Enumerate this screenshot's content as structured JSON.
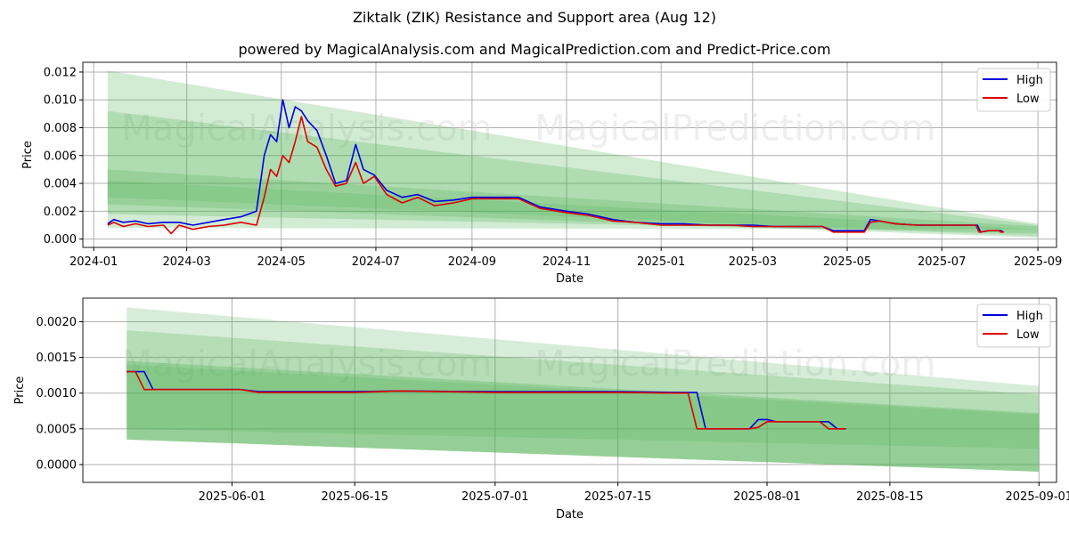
{
  "title": "Ziktalk (ZIK) Resistance and Support area (Aug 12)",
  "subtitle": "powered by MagicalAnalysis.com and MagicalPrediction.com and Predict-Price.com",
  "watermarks": [
    "MagicalAnalysis.com",
    "MagicalPrediction.com"
  ],
  "colors": {
    "high": "#0000dd",
    "low": "#dd0000",
    "band": "#4caf50",
    "grid": "#b0b0b0"
  },
  "chart_data": [
    {
      "type": "line",
      "xlabel": "Date",
      "ylabel": "Price",
      "xlim": [
        "2023-12-25",
        "2025-09-13"
      ],
      "ylim": [
        -0.0006,
        0.0127
      ],
      "x_ticks": [
        "2024-01",
        "2024-03",
        "2024-05",
        "2024-07",
        "2024-09",
        "2024-11",
        "2025-01",
        "2025-03",
        "2025-05",
        "2025-07",
        "2025-09"
      ],
      "y_ticks": [
        "0.000",
        "0.002",
        "0.004",
        "0.006",
        "0.008",
        "0.010",
        "0.012"
      ],
      "legend": {
        "position": "top-right",
        "entries": [
          "High",
          "Low"
        ]
      },
      "grid": true,
      "bands_date_range": [
        "2024-01-10",
        "2025-09-01"
      ],
      "bands": [
        {
          "upper": [
            0.0121,
            0.0011
          ],
          "lower": [
            0.0008,
            0.0007
          ],
          "opacity": 0.25
        },
        {
          "upper": [
            0.0092,
            0.001
          ],
          "lower": [
            0.0018,
            0.0004
          ],
          "opacity": 0.25
        },
        {
          "upper": [
            0.005,
            0.0009
          ],
          "lower": [
            0.0025,
            0.0001
          ],
          "opacity": 0.25
        },
        {
          "upper": [
            0.0042,
            0.0007
          ],
          "lower": [
            0.003,
            0.0002
          ],
          "opacity": 0.2
        }
      ],
      "series": [
        {
          "name": "High",
          "points": [
            [
              "2024-01-10",
              0.0011
            ],
            [
              "2024-01-14",
              0.0014
            ],
            [
              "2024-01-20",
              0.0012
            ],
            [
              "2024-01-28",
              0.0013
            ],
            [
              "2024-02-05",
              0.0011
            ],
            [
              "2024-02-15",
              0.0012
            ],
            [
              "2024-02-25",
              0.0012
            ],
            [
              "2024-03-05",
              0.001
            ],
            [
              "2024-03-15",
              0.0012
            ],
            [
              "2024-03-25",
              0.0014
            ],
            [
              "2024-04-05",
              0.0016
            ],
            [
              "2024-04-15",
              0.002
            ],
            [
              "2024-04-20",
              0.006
            ],
            [
              "2024-04-24",
              0.0075
            ],
            [
              "2024-04-28",
              0.007
            ],
            [
              "2024-05-02",
              0.01
            ],
            [
              "2024-05-06",
              0.008
            ],
            [
              "2024-05-10",
              0.0095
            ],
            [
              "2024-05-14",
              0.0092
            ],
            [
              "2024-05-18",
              0.0085
            ],
            [
              "2024-05-24",
              0.0078
            ],
            [
              "2024-05-30",
              0.006
            ],
            [
              "2024-06-05",
              0.004
            ],
            [
              "2024-06-12",
              0.0042
            ],
            [
              "2024-06-18",
              0.0068
            ],
            [
              "2024-06-23",
              0.005
            ],
            [
              "2024-06-30",
              0.0046
            ],
            [
              "2024-07-08",
              0.0035
            ],
            [
              "2024-07-18",
              0.003
            ],
            [
              "2024-07-28",
              0.0032
            ],
            [
              "2024-08-08",
              0.0027
            ],
            [
              "2024-08-20",
              0.0028
            ],
            [
              "2024-09-01",
              0.003
            ],
            [
              "2024-09-15",
              0.003
            ],
            [
              "2024-10-01",
              0.003
            ],
            [
              "2024-10-15",
              0.0023
            ],
            [
              "2024-11-01",
              0.002
            ],
            [
              "2024-11-15",
              0.0018
            ],
            [
              "2024-12-01",
              0.0014
            ],
            [
              "2024-12-15",
              0.0012
            ],
            [
              "2025-01-01",
              0.0011
            ],
            [
              "2025-01-15",
              0.0011
            ],
            [
              "2025-02-01",
              0.001
            ],
            [
              "2025-02-15",
              0.001
            ],
            [
              "2025-03-01",
              0.001
            ],
            [
              "2025-03-15",
              0.0009
            ],
            [
              "2025-04-01",
              0.0009
            ],
            [
              "2025-04-15",
              0.0009
            ],
            [
              "2025-04-22",
              0.0006
            ],
            [
              "2025-05-01",
              0.0006
            ],
            [
              "2025-05-12",
              0.0006
            ],
            [
              "2025-05-16",
              0.0014
            ],
            [
              "2025-05-22",
              0.0013
            ],
            [
              "2025-06-01",
              0.0011
            ],
            [
              "2025-06-15",
              0.001
            ],
            [
              "2025-07-01",
              0.001
            ],
            [
              "2025-07-15",
              0.001
            ],
            [
              "2025-07-24",
              0.001
            ],
            [
              "2025-07-26",
              0.0005
            ],
            [
              "2025-07-31",
              0.0006
            ],
            [
              "2025-08-08",
              0.0006
            ],
            [
              "2025-08-10",
              0.0005
            ]
          ]
        },
        {
          "name": "Low",
          "points": [
            [
              "2024-01-10",
              0.001
            ],
            [
              "2024-01-14",
              0.0012
            ],
            [
              "2024-01-20",
              0.0009
            ],
            [
              "2024-01-28",
              0.0011
            ],
            [
              "2024-02-05",
              0.0009
            ],
            [
              "2024-02-15",
              0.001
            ],
            [
              "2024-02-20",
              0.0004
            ],
            [
              "2024-02-25",
              0.001
            ],
            [
              "2024-03-05",
              0.0007
            ],
            [
              "2024-03-15",
              0.0009
            ],
            [
              "2024-03-25",
              0.001
            ],
            [
              "2024-04-05",
              0.0012
            ],
            [
              "2024-04-15",
              0.001
            ],
            [
              "2024-04-20",
              0.003
            ],
            [
              "2024-04-24",
              0.005
            ],
            [
              "2024-04-28",
              0.0045
            ],
            [
              "2024-05-02",
              0.006
            ],
            [
              "2024-05-06",
              0.0055
            ],
            [
              "2024-05-10",
              0.007
            ],
            [
              "2024-05-14",
              0.0088
            ],
            [
              "2024-05-18",
              0.007
            ],
            [
              "2024-05-24",
              0.0066
            ],
            [
              "2024-05-30",
              0.005
            ],
            [
              "2024-06-05",
              0.0038
            ],
            [
              "2024-06-12",
              0.004
            ],
            [
              "2024-06-18",
              0.0055
            ],
            [
              "2024-06-23",
              0.004
            ],
            [
              "2024-06-30",
              0.0045
            ],
            [
              "2024-07-08",
              0.0032
            ],
            [
              "2024-07-18",
              0.0026
            ],
            [
              "2024-07-28",
              0.003
            ],
            [
              "2024-08-08",
              0.0024
            ],
            [
              "2024-08-20",
              0.0026
            ],
            [
              "2024-09-01",
              0.0029
            ],
            [
              "2024-09-15",
              0.0029
            ],
            [
              "2024-10-01",
              0.0029
            ],
            [
              "2024-10-15",
              0.0022
            ],
            [
              "2024-11-01",
              0.0019
            ],
            [
              "2024-11-15",
              0.0017
            ],
            [
              "2024-12-01",
              0.0013
            ],
            [
              "2024-12-15",
              0.0012
            ],
            [
              "2025-01-01",
              0.001
            ],
            [
              "2025-01-15",
              0.001
            ],
            [
              "2025-02-01",
              0.001
            ],
            [
              "2025-02-15",
              0.001
            ],
            [
              "2025-03-01",
              0.0009
            ],
            [
              "2025-03-15",
              0.0009
            ],
            [
              "2025-04-01",
              0.0009
            ],
            [
              "2025-04-15",
              0.0009
            ],
            [
              "2025-04-22",
              0.0005
            ],
            [
              "2025-05-01",
              0.0005
            ],
            [
              "2025-05-12",
              0.0005
            ],
            [
              "2025-05-16",
              0.0012
            ],
            [
              "2025-05-22",
              0.0013
            ],
            [
              "2025-06-01",
              0.0011
            ],
            [
              "2025-06-15",
              0.001
            ],
            [
              "2025-07-01",
              0.001
            ],
            [
              "2025-07-15",
              0.001
            ],
            [
              "2025-07-23",
              0.001
            ],
            [
              "2025-07-25",
              0.0005
            ],
            [
              "2025-07-31",
              0.0006
            ],
            [
              "2025-08-07",
              0.0006
            ],
            [
              "2025-08-08",
              0.0005
            ],
            [
              "2025-08-10",
              0.0005
            ]
          ]
        }
      ]
    },
    {
      "type": "line",
      "xlabel": "Date",
      "ylabel": "Price",
      "xlim": [
        "2025-05-15",
        "2025-09-03"
      ],
      "ylim": [
        -0.00025,
        0.00233
      ],
      "x_ticks": [
        "2025-06-01",
        "2025-06-15",
        "2025-07-01",
        "2025-07-15",
        "2025-08-01",
        "2025-08-15",
        "2025-09-01"
      ],
      "y_ticks": [
        "0.0000",
        "0.0005",
        "0.0010",
        "0.0015",
        "0.0020"
      ],
      "legend": {
        "position": "top-right",
        "entries": [
          "High",
          "Low"
        ]
      },
      "grid": true,
      "bands_date_range": [
        "2025-05-20",
        "2025-09-01"
      ],
      "bands": [
        {
          "upper": [
            0.0022,
            0.0011
          ],
          "lower": [
            0.00035,
            -0.0001
          ],
          "opacity": 0.22
        },
        {
          "upper": [
            0.00188,
            0.00098
          ],
          "lower": [
            0.00035,
            -0.0001
          ],
          "opacity": 0.25
        },
        {
          "upper": [
            0.00145,
            0.00072
          ],
          "lower": [
            0.00035,
            -0.0001
          ],
          "opacity": 0.3
        },
        {
          "upper": [
            0.0014,
            0.0007
          ],
          "lower": [
            0.0005,
            0.00022
          ],
          "opacity": 0.2
        }
      ],
      "series": [
        {
          "name": "High",
          "points": [
            [
              "2025-05-20",
              0.0013
            ],
            [
              "2025-05-22",
              0.0013
            ],
            [
              "2025-05-22",
              0.0013
            ],
            [
              "2025-05-23",
              0.00105
            ],
            [
              "2025-06-02",
              0.00105
            ],
            [
              "2025-06-04",
              0.00102
            ],
            [
              "2025-06-15",
              0.00102
            ],
            [
              "2025-06-20",
              0.00103
            ],
            [
              "2025-07-01",
              0.00102
            ],
            [
              "2025-07-15",
              0.00102
            ],
            [
              "2025-07-22",
              0.00101
            ],
            [
              "2025-07-24",
              0.00101
            ],
            [
              "2025-07-25",
              0.0005
            ],
            [
              "2025-07-30",
              0.0005
            ],
            [
              "2025-07-31",
              0.00063
            ],
            [
              "2025-08-01",
              0.00063
            ],
            [
              "2025-08-02",
              0.0006
            ],
            [
              "2025-08-07",
              0.0006
            ],
            [
              "2025-08-08",
              0.0006
            ],
            [
              "2025-08-09",
              0.0005
            ],
            [
              "2025-08-10",
              0.0005
            ]
          ]
        },
        {
          "name": "Low",
          "points": [
            [
              "2025-05-20",
              0.0013
            ],
            [
              "2025-05-21",
              0.0013
            ],
            [
              "2025-05-22",
              0.00105
            ],
            [
              "2025-06-02",
              0.00105
            ],
            [
              "2025-06-04",
              0.00101
            ],
            [
              "2025-06-15",
              0.00101
            ],
            [
              "2025-06-20",
              0.00103
            ],
            [
              "2025-07-01",
              0.00101
            ],
            [
              "2025-07-15",
              0.00101
            ],
            [
              "2025-07-22",
              0.001
            ],
            [
              "2025-07-23",
              0.001
            ],
            [
              "2025-07-24",
              0.0005
            ],
            [
              "2025-07-30",
              0.0005
            ],
            [
              "2025-07-31",
              0.00052
            ],
            [
              "2025-08-01",
              0.0006
            ],
            [
              "2025-08-07",
              0.0006
            ],
            [
              "2025-08-08",
              0.0005
            ],
            [
              "2025-08-10",
              0.0005
            ]
          ]
        }
      ]
    }
  ]
}
